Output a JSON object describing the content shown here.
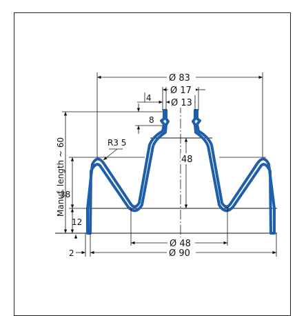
{
  "colors": {
    "profile": "#1f5ea8",
    "line": "#111111",
    "frame": "#222222"
  },
  "dimensions": {
    "d_outer_top": "Ø 83",
    "d_neck_outer": "Ø 17",
    "d_neck_inner": "Ø 13",
    "neck_width": "4",
    "neck_height": "8",
    "radius": "R3  5",
    "height_48": "48",
    "manuf_length": "Manuf. length ~ 60",
    "h_38": "38",
    "h_12": "12",
    "d_48": "Ø 48",
    "wall_2": "2",
    "d_90": "Ø 90"
  }
}
